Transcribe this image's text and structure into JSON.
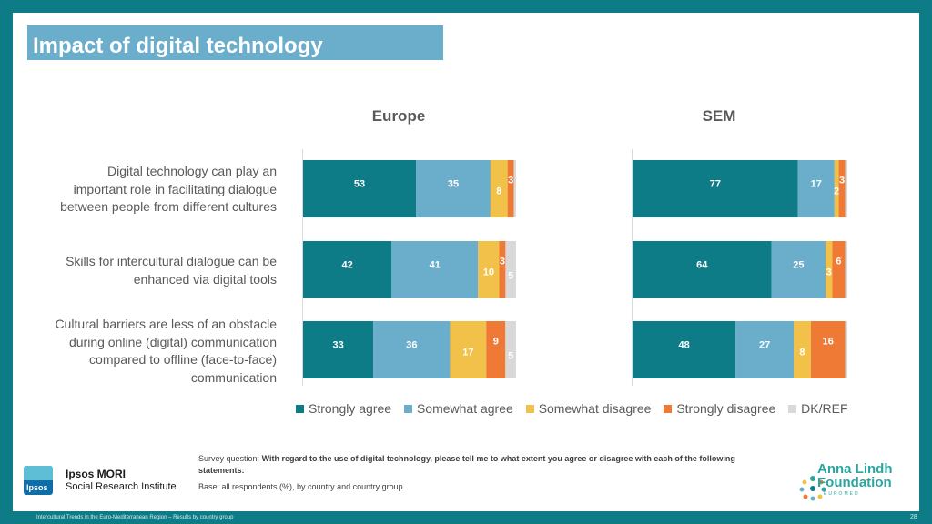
{
  "header": {
    "title": "Impact of digital technology"
  },
  "chart_data": {
    "type": "bar",
    "orientation": "horizontal",
    "stacked": true,
    "groups": [
      "Europe",
      "SEM"
    ],
    "categories": [
      "Digital technology can play an important role in facilitating dialogue between people from different cultures",
      "Skills for intercultural dialogue can be enhanced via digital tools",
      "Cultural barriers are less of an obstacle during online (digital) communication compared to offline (face-to-face) communication"
    ],
    "series": [
      {
        "name": "Strongly agree",
        "color": "#0e7c86",
        "europe": [
          53,
          42,
          33
        ],
        "sem": [
          77,
          64,
          48
        ]
      },
      {
        "name": "Somewhat agree",
        "color": "#6baecb",
        "europe": [
          35,
          41,
          36
        ],
        "sem": [
          17,
          25,
          27
        ]
      },
      {
        "name": "Somewhat disagree",
        "color": "#f2c14a",
        "europe": [
          8,
          10,
          17
        ],
        "sem": [
          2,
          3,
          8
        ]
      },
      {
        "name": "Strongly disagree",
        "color": "#ef7a35",
        "europe": [
          3,
          3,
          9
        ],
        "sem": [
          3,
          6,
          16
        ]
      },
      {
        "name": "DK/REF",
        "color": "#d9d9d9",
        "europe": [
          1,
          5,
          5
        ],
        "sem": [
          1,
          1,
          1
        ]
      }
    ],
    "value_labels": {
      "europe": [
        [
          "53",
          "35",
          "8",
          "3",
          ""
        ],
        [
          "42",
          "41",
          "10",
          "3",
          "5"
        ],
        [
          "33",
          "36",
          "17",
          "9",
          "5"
        ]
      ],
      "sem": [
        [
          "77",
          "17",
          "2",
          "3",
          ""
        ],
        [
          "64",
          "25",
          "3",
          "6",
          ""
        ],
        [
          "48",
          "27",
          "8",
          "16",
          ""
        ]
      ]
    },
    "xlim": [
      0,
      100
    ],
    "legend_position": "bottom"
  },
  "statements": [
    [
      "Digital technology can play an",
      "important role in facilitating dialogue",
      "between people from different cultures"
    ],
    [
      "Skills for intercultural dialogue can be",
      "enhanced via digital tools"
    ],
    [
      "Cultural barriers are less of an obstacle",
      "during online (digital) communication",
      "compared to offline (face-to-face)",
      "communication"
    ]
  ],
  "notes": {
    "question_label": "Survey question:",
    "question_text": "With regard to the use of digital technology, please tell me to what extent you agree or disagree with each of the following statements:",
    "base": "Base: all respondents (%), by country and country group"
  },
  "branding": {
    "ipsos_logo": "Ipsos",
    "ipsos_name": "Ipsos MORI",
    "ipsos_sub": "Social Research Institute",
    "al_line1": "Anna Lindh",
    "al_line2": "Foundation",
    "al_sub": "EUROMED"
  },
  "footer": {
    "left": "Intercultural Trends in the Euro-Mediterranean Region – Results by country group",
    "page": "28"
  }
}
